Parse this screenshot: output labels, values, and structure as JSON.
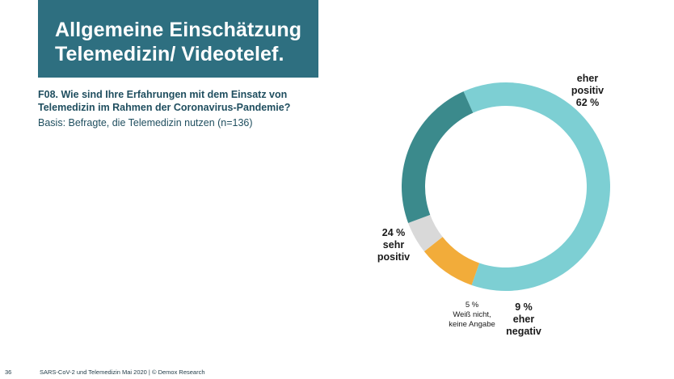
{
  "slide": {
    "title_lines": [
      "Allgemeine Einschätzung",
      "Telemedizin/ Videotelef."
    ],
    "question_lines": [
      "F08. Wie sind Ihre Erfahrungen mit dem Einsatz von",
      "Telemedizin im Rahmen der Coronavirus-Pandemie?"
    ],
    "basis": "Basis: Befragte, die Telemedizin nutzen (n=136)",
    "page_number": "36",
    "footer_text": "SARS-CoV-2 und Telemedizin Mai 2020 | © Demox Research"
  },
  "colors": {
    "title_bg": "#2e6f80",
    "text_dark": "#1f4e5f",
    "eher_positiv": "#7dcfd3",
    "sehr_positiv": "#3b8a8c",
    "weiss_nicht": "#d9d9d9",
    "eher_negativ": "#f2ac3a"
  },
  "chart_data": {
    "type": "pie",
    "style": "donut",
    "grid": false,
    "slices": [
      {
        "key": "eher_positiv",
        "value": 62,
        "label_lines": [
          "eher",
          "positiv",
          "62 %"
        ],
        "bold": true
      },
      {
        "key": "eher_negativ",
        "value": 9,
        "label_lines": [
          "9 %",
          "eher",
          "negativ"
        ],
        "bold": true
      },
      {
        "key": "weiss_nicht",
        "value": 5,
        "label_lines": [
          "5 %",
          "Weiß nicht,",
          "keine Angabe"
        ],
        "bold": false
      },
      {
        "key": "sehr_positiv",
        "value": 24,
        "label_lines": [
          "24 %",
          "sehr",
          "positiv"
        ],
        "bold": true
      }
    ]
  }
}
